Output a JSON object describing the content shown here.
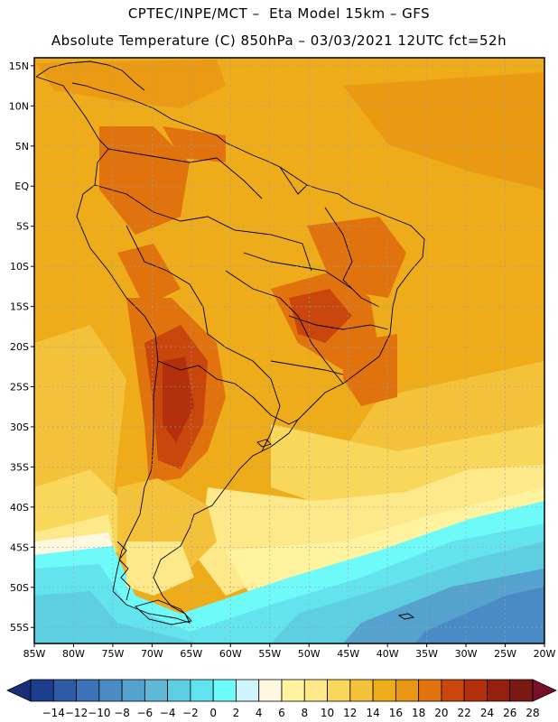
{
  "header": {
    "line1": "CPTEC/INPE/MCT –  Eta Model 15km – GFS",
    "line2": "Absolute Temperature (C) 850hPa – 03/03/2021 12UTC fct=52h"
  },
  "map": {
    "lat_labels": [
      "15N",
      "10N",
      "5N",
      "EQ",
      "5S",
      "10S",
      "15S",
      "20S",
      "25S",
      "30S",
      "35S",
      "40S",
      "45S",
      "50S",
      "55S"
    ],
    "lon_labels": [
      "85W",
      "80W",
      "75W",
      "70W",
      "65W",
      "60W",
      "55W",
      "50W",
      "45W",
      "40W",
      "35W",
      "30W",
      "25W",
      "20W"
    ],
    "lon_range": [
      -85,
      -20
    ],
    "lat_range": [
      -57,
      16
    ]
  },
  "colorbar": {
    "labels": [
      "-14",
      "-12",
      "-10",
      "-8",
      "-6",
      "-4",
      "-2",
      "0",
      "2",
      "4",
      "6",
      "8",
      "10",
      "12",
      "14",
      "16",
      "18",
      "20",
      "22",
      "24",
      "26",
      "28"
    ],
    "colors": [
      "#1c3e8e",
      "#2e5aa6",
      "#3c73b8",
      "#4a8bc6",
      "#55a2cf",
      "#5fb8d6",
      "#5ecfe0",
      "#63e3ee",
      "#6ffafa",
      "#cdf5fb",
      "#fff8e0",
      "#fff3a0",
      "#fde98a",
      "#f8d75a",
      "#f4c23a",
      "#eeab1a",
      "#e99612",
      "#e0730e",
      "#c9470c",
      "#b3300c",
      "#962010",
      "#7a1a12"
    ],
    "under_color": "#1a2f7a",
    "over_color": "#7a0f2a"
  }
}
